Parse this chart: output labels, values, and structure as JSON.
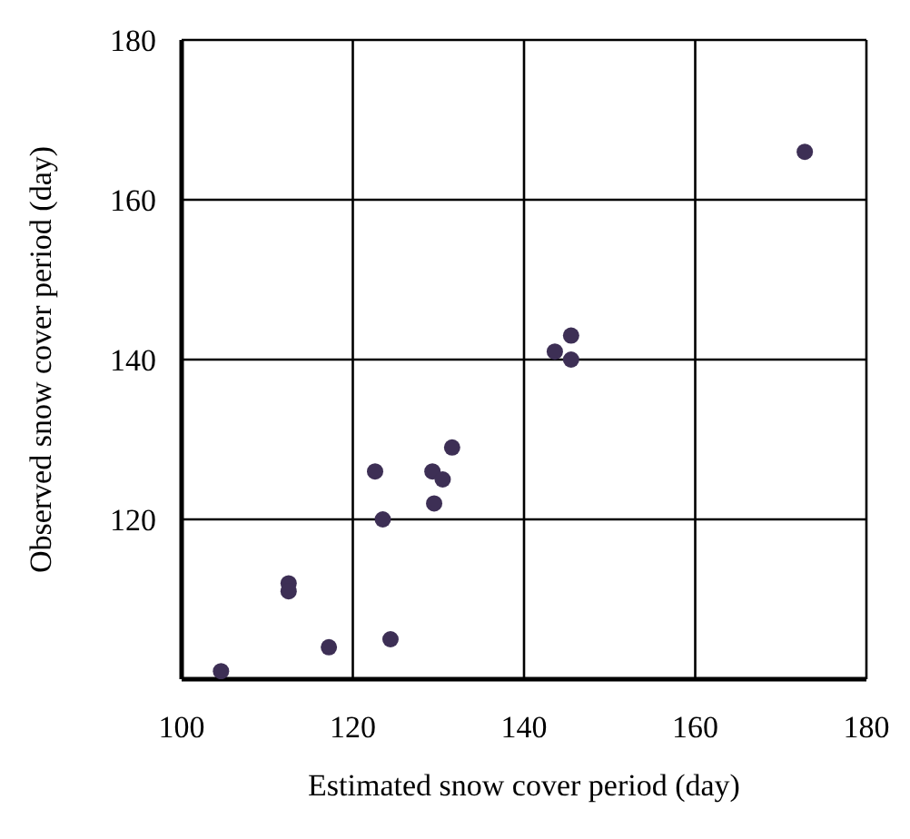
{
  "chart_data": {
    "type": "scatter",
    "xlabel": "Estimated snow cover period (day)",
    "ylabel": "Observed snow cover period (day)",
    "x": [
      172.8,
      145.5,
      143.6,
      145.5,
      131.6,
      122.6,
      129.3,
      130.5,
      129.5,
      123.5,
      112.5,
      112.5,
      117.2,
      124.4,
      104.6
    ],
    "values": [
      166,
      143,
      141,
      140,
      129,
      126,
      126,
      125,
      122,
      120,
      112,
      111,
      104,
      105,
      101
    ],
    "color": "#3d2f55",
    "marker": "circle",
    "xlim": [
      100,
      180
    ],
    "xticks": [
      100,
      120,
      140,
      160,
      180
    ],
    "ylim": [
      100,
      180
    ],
    "yticks": [
      {
        "value": 100,
        "label": null
      },
      120,
      140,
      160,
      180
    ],
    "grid": true
  }
}
